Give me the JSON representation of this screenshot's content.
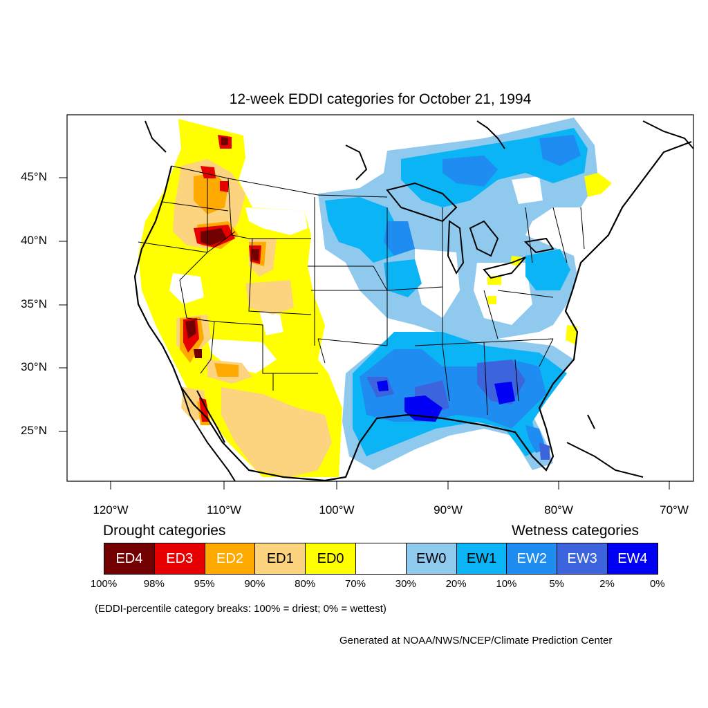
{
  "title": "12-week EDDI categories for October 21, 1994",
  "lat_labels": [
    "45°N",
    "40°N",
    "35°N",
    "30°N",
    "25°N"
  ],
  "lon_labels": [
    "120°W",
    "110°W",
    "100°W",
    "90°W",
    "80°W",
    "70°W"
  ],
  "legend": {
    "drought_heading": "Drought categories",
    "wetness_heading": "Wetness categories",
    "categories": [
      {
        "label": "ED4",
        "color": "#730000",
        "text_color": "#ffffff"
      },
      {
        "label": "ED3",
        "color": "#e60000",
        "text_color": "#ffffff"
      },
      {
        "label": "ED2",
        "color": "#ffaa00",
        "text_color": "#ffffff"
      },
      {
        "label": "ED1",
        "color": "#fcd37f",
        "text_color": "#000000"
      },
      {
        "label": "ED0",
        "color": "#ffff00",
        "text_color": "#000000"
      },
      {
        "label": "",
        "color": "#ffffff",
        "text_color": "#000000"
      },
      {
        "label": "EW0",
        "color": "#8fc9ee",
        "text_color": "#000000"
      },
      {
        "label": "EW1",
        "color": "#0bb4f5",
        "text_color": "#000000"
      },
      {
        "label": "EW2",
        "color": "#1e8cf0",
        "text_color": "#ffffff"
      },
      {
        "label": "EW3",
        "color": "#3c64dc",
        "text_color": "#ffffff"
      },
      {
        "label": "EW4",
        "color": "#0000f5",
        "text_color": "#ffffff"
      }
    ],
    "breaks": [
      "100%",
      "98%",
      "95%",
      "90%",
      "80%",
      "70%",
      "30%",
      "20%",
      "10%",
      "5%",
      "2%",
      "0%"
    ]
  },
  "note": "(EDDI-percentile category breaks: 100% = driest; 0% = wettest)",
  "credit": "Generated at NOAA/NWS/NCEP/Climate Prediction Center"
}
